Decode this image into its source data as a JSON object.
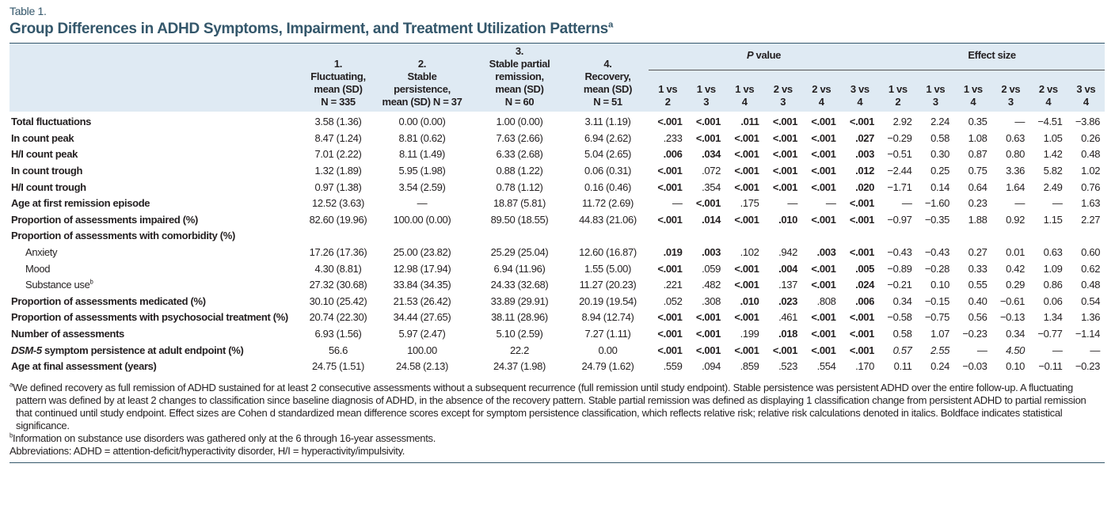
{
  "table_number": "Table 1.",
  "title": "Group Differences in ADHD Symptoms, Impairment, and Treatment Utilization Patterns",
  "title_sup": "a",
  "table": {
    "group_headers": [
      "1.\nFluctuating,\nmean (SD)\nN = 335",
      "2.\nStable\npersistence,\nmean (SD) N = 37",
      "3.\nStable partial\nremission,\nmean (SD)\nN = 60",
      "4.\nRecovery,\nmean (SD)\nN = 51"
    ],
    "p_header_italic": "P",
    "p_header": " value",
    "effect_header": "Effect size",
    "comparisons": [
      "1 vs\n2",
      "1 vs\n3",
      "1 vs\n4",
      "2 vs\n3",
      "2 vs\n4",
      "3 vs\n4"
    ],
    "rows": [
      {
        "label": "Total fluctuations",
        "groups": [
          "3.58 (1.36)",
          "0.00 (0.00)",
          "1.00 (0.00)",
          "3.11 (1.19)"
        ],
        "p": [
          "<.001",
          "<.001",
          ".011",
          "<.001",
          "<.001",
          "<.001"
        ],
        "p_bold": [
          true,
          true,
          true,
          true,
          true,
          true
        ],
        "effect": [
          "2.92",
          "2.24",
          "0.35",
          "—",
          "−4.51",
          "−3.86"
        ]
      },
      {
        "label": "In count peak",
        "groups": [
          "8.47 (1.24)",
          "8.81 (0.62)",
          "7.63 (2.66)",
          "6.94 (2.62)"
        ],
        "p": [
          ".233",
          "<.001",
          "<.001",
          "<.001",
          "<.001",
          ".027"
        ],
        "p_bold": [
          false,
          true,
          true,
          true,
          true,
          true
        ],
        "effect": [
          "−0.29",
          "0.58",
          "1.08",
          "0.63",
          "1.05",
          "0.26"
        ]
      },
      {
        "label": "H/I count peak",
        "groups": [
          "7.01 (2.22)",
          "8.11 (1.49)",
          "6.33 (2.68)",
          "5.04 (2.65)"
        ],
        "p": [
          ".006",
          ".034",
          "<.001",
          "<.001",
          "<.001",
          ".003"
        ],
        "p_bold": [
          true,
          true,
          true,
          true,
          true,
          true
        ],
        "effect": [
          "−0.51",
          "0.30",
          "0.87",
          "0.80",
          "1.42",
          "0.48"
        ]
      },
      {
        "label": "In count trough",
        "groups": [
          "1.32 (1.89)",
          "5.95 (1.98)",
          "0.88 (1.22)",
          "0.06 (0.31)"
        ],
        "p": [
          "<.001",
          ".072",
          "<.001",
          "<.001",
          "<.001",
          ".012"
        ],
        "p_bold": [
          true,
          false,
          true,
          true,
          true,
          true
        ],
        "effect": [
          "−2.44",
          "0.25",
          "0.75",
          "3.36",
          "5.82",
          "1.02"
        ]
      },
      {
        "label": "H/I count trough",
        "groups": [
          "0.97 (1.38)",
          "3.54 (2.59)",
          "0.78 (1.12)",
          "0.16 (0.46)"
        ],
        "p": [
          "<.001",
          ".354",
          "<.001",
          "<.001",
          "<.001",
          ".020"
        ],
        "p_bold": [
          true,
          false,
          true,
          true,
          true,
          true
        ],
        "effect": [
          "−1.71",
          "0.14",
          "0.64",
          "1.64",
          "2.49",
          "0.76"
        ]
      },
      {
        "label": "Age at first remission episode",
        "groups": [
          "12.52 (3.63)",
          "—",
          "18.87 (5.81)",
          "11.72 (2.69)"
        ],
        "p": [
          "—",
          "<.001",
          ".175",
          "—",
          "—",
          "<.001"
        ],
        "p_bold": [
          false,
          true,
          false,
          false,
          false,
          true
        ],
        "effect": [
          "—",
          "−1.60",
          "0.23",
          "—",
          "—",
          "1.63"
        ]
      },
      {
        "label": "Proportion of assessments impaired (%)",
        "groups": [
          "82.60 (19.96)",
          "100.00 (0.00)",
          "89.50 (18.55)",
          "44.83 (21.06)"
        ],
        "p": [
          "<.001",
          ".014",
          "<.001",
          ".010",
          "<.001",
          "<.001"
        ],
        "p_bold": [
          true,
          true,
          true,
          true,
          true,
          true
        ],
        "effect": [
          "−0.97",
          "−0.35",
          "1.88",
          "0.92",
          "1.15",
          "2.27"
        ]
      },
      {
        "label": "Proportion of assessments with comorbidity (%)",
        "groups": [],
        "p": [],
        "p_bold": [],
        "effect": []
      },
      {
        "label": "Anxiety",
        "indent": true,
        "groups": [
          "17.26 (17.36)",
          "25.00 (23.82)",
          "25.29 (25.04)",
          "12.60 (16.87)"
        ],
        "p": [
          ".019",
          ".003",
          ".102",
          ".942",
          ".003",
          "<.001"
        ],
        "p_bold": [
          true,
          true,
          false,
          false,
          true,
          true
        ],
        "effect": [
          "−0.43",
          "−0.43",
          "0.27",
          "0.01",
          "0.63",
          "0.60"
        ]
      },
      {
        "label": "Mood",
        "indent": true,
        "groups": [
          "4.30 (8.81)",
          "12.98 (17.94)",
          "6.94 (11.96)",
          "1.55 (5.00)"
        ],
        "p": [
          "<.001",
          ".059",
          "<.001",
          ".004",
          "<.001",
          ".005"
        ],
        "p_bold": [
          true,
          false,
          true,
          true,
          true,
          true
        ],
        "effect": [
          "−0.89",
          "−0.28",
          "0.33",
          "0.42",
          "1.09",
          "0.62"
        ]
      },
      {
        "label": "Substance use",
        "label_sup": "b",
        "indent": true,
        "groups": [
          "27.32 (30.68)",
          "33.84 (34.35)",
          "24.33 (32.68)",
          "11.27 (20.23)"
        ],
        "p": [
          ".221",
          ".482",
          "<.001",
          ".137",
          "<.001",
          ".024"
        ],
        "p_bold": [
          false,
          false,
          true,
          false,
          true,
          true
        ],
        "effect": [
          "−0.21",
          "0.10",
          "0.55",
          "0.29",
          "0.86",
          "0.48"
        ]
      },
      {
        "label": "Proportion of assessments medicated (%)",
        "groups": [
          "30.10 (25.42)",
          "21.53 (26.42)",
          "33.89 (29.91)",
          "20.19 (19.54)"
        ],
        "p": [
          ".052",
          ".308",
          ".010",
          ".023",
          ".808",
          ".006"
        ],
        "p_bold": [
          false,
          false,
          true,
          true,
          false,
          true
        ],
        "effect": [
          "0.34",
          "−0.15",
          "0.40",
          "−0.61",
          "0.06",
          "0.54"
        ]
      },
      {
        "label": "Proportion of assessments with psychosocial treatment (%)",
        "groups": [
          "20.74 (22.30)",
          "34.44 (27.65)",
          "38.11 (28.96)",
          "8.94 (12.74)"
        ],
        "p": [
          "<.001",
          "<.001",
          "<.001",
          ".461",
          "<.001",
          "<.001"
        ],
        "p_bold": [
          true,
          true,
          true,
          false,
          true,
          true
        ],
        "effect": [
          "−0.58",
          "−0.75",
          "0.56",
          "−0.13",
          "1.34",
          "1.36"
        ]
      },
      {
        "label": "Number of assessments",
        "groups": [
          "6.93 (1.56)",
          "5.97 (2.47)",
          "5.10 (2.59)",
          "7.27 (1.11)"
        ],
        "p": [
          "<.001",
          "<.001",
          ".199",
          ".018",
          "<.001",
          "<.001"
        ],
        "p_bold": [
          true,
          true,
          false,
          true,
          true,
          true
        ],
        "effect": [
          "0.58",
          "1.07",
          "−0.23",
          "0.34",
          "−0.77",
          "−1.14"
        ]
      },
      {
        "label_italic": "DSM-5",
        "label": " symptom persistence at adult endpoint (%)",
        "groups": [
          "56.6",
          "100.00",
          "22.2",
          "0.00"
        ],
        "p": [
          "<.001",
          "<.001",
          "<.001",
          "<.001",
          "<.001",
          "<.001"
        ],
        "p_bold": [
          true,
          true,
          true,
          true,
          true,
          true
        ],
        "effect": [
          "0.57",
          "2.55",
          "—",
          "4.50",
          "—",
          "—"
        ],
        "effect_italic": [
          true,
          true,
          false,
          true,
          false,
          false
        ]
      },
      {
        "label": "Age at final assessment (years)",
        "groups": [
          "24.75 (1.51)",
          "24.58 (2.13)",
          "24.37 (1.98)",
          "24.79 (1.62)"
        ],
        "p": [
          ".559",
          ".094",
          ".859",
          ".523",
          ".554",
          ".170"
        ],
        "p_bold": [
          false,
          false,
          false,
          false,
          false,
          false
        ],
        "effect": [
          "0.11",
          "0.24",
          "−0.03",
          "0.10",
          "−0.11",
          "−0.23"
        ]
      }
    ]
  },
  "footnotes": [
    {
      "sup": "a",
      "text": "We defined recovery as full remission of ADHD sustained for at least 2 consecutive assessments without a subsequent recurrence (full remission until study endpoint). Stable persistence was persistent ADHD over the entire follow-up. A fluctuating pattern was defined by at least 2 changes to classification since baseline diagnosis of ADHD, in the absence of the recovery pattern. Stable partial remission was defined as displaying 1 classification change from persistent ADHD to partial remission that continued until study endpoint. Effect sizes are Cohen d standardized mean difference scores except for symptom persistence classification, which reflects relative risk; relative risk calculations denoted in italics. Boldface indicates statistical significance."
    },
    {
      "sup": "b",
      "text": "Information on substance use disorders was gathered only at the 6 through 16-year assessments."
    },
    {
      "text": "Abbreviations: ADHD = attention-deficit/hyperactivity disorder, H/I = hyperactivity/impulsivity."
    }
  ]
}
